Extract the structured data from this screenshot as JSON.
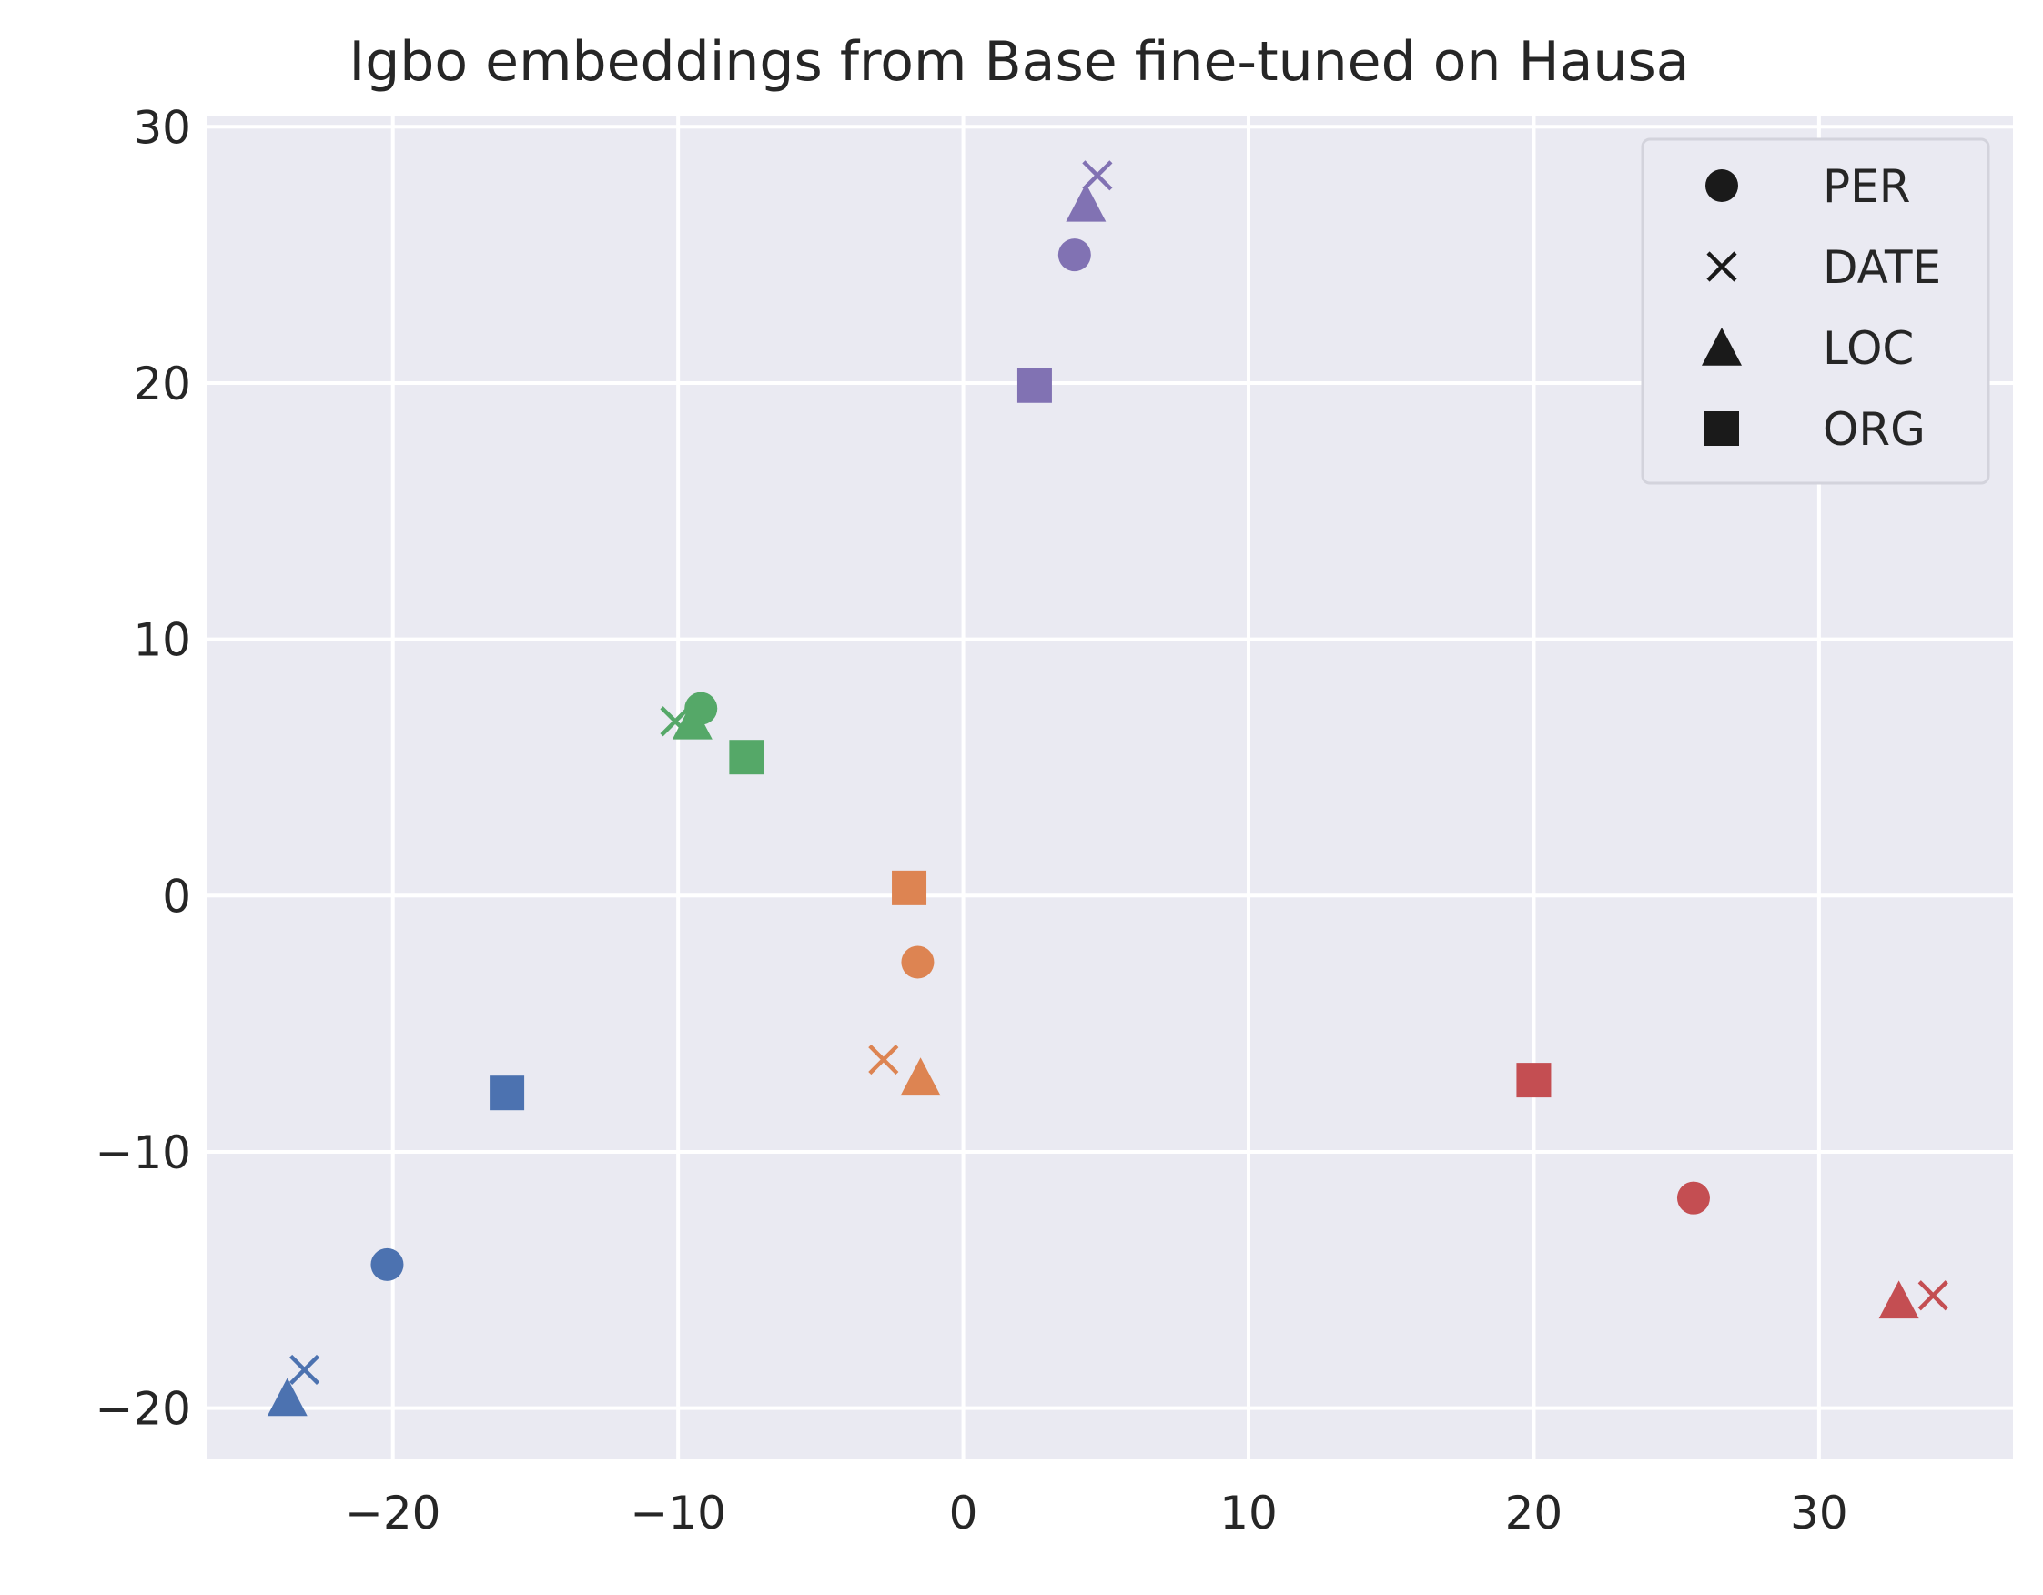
{
  "chart_data": {
    "type": "scatter",
    "title": "Igbo embeddings from Base fine-tuned on Hausa",
    "xlabel": "",
    "ylabel": "",
    "xlim": [
      -26.5,
      36.8
    ],
    "ylim": [
      -22,
      30.4
    ],
    "x_ticks": [
      -20,
      -10,
      0,
      10,
      20,
      30
    ],
    "y_ticks": [
      -20,
      -10,
      0,
      10,
      20,
      30
    ],
    "x_tick_labels": [
      "−20",
      "−10",
      "0",
      "10",
      "20",
      "30"
    ],
    "y_tick_labels": [
      "−20",
      "−10",
      "0",
      "10",
      "20",
      "30"
    ],
    "grid": true,
    "legend_position": "top-right",
    "legend": [
      {
        "label": "PER",
        "marker": "circle"
      },
      {
        "label": "DATE",
        "marker": "x"
      },
      {
        "label": "LOC",
        "marker": "triangle"
      },
      {
        "label": "ORG",
        "marker": "square"
      }
    ],
    "colors": {
      "blue": "#4c72b0",
      "orange": "#dd8452",
      "green": "#55a868",
      "red": "#c44e52",
      "purple": "#8172b3",
      "background": "#eaeaf2",
      "grid": "#ffffff",
      "legend_marker": "#1a1a1a"
    },
    "points": [
      {
        "x": -20.2,
        "y": -14.4,
        "marker": "circle",
        "color": "blue"
      },
      {
        "x": -23.1,
        "y": -18.5,
        "marker": "x",
        "color": "blue"
      },
      {
        "x": -23.7,
        "y": -19.6,
        "marker": "triangle",
        "color": "blue"
      },
      {
        "x": -16.0,
        "y": -7.7,
        "marker": "square",
        "color": "blue"
      },
      {
        "x": -1.6,
        "y": -2.6,
        "marker": "circle",
        "color": "orange"
      },
      {
        "x": -2.8,
        "y": -6.4,
        "marker": "x",
        "color": "orange"
      },
      {
        "x": -1.5,
        "y": -7.1,
        "marker": "triangle",
        "color": "orange"
      },
      {
        "x": -1.9,
        "y": 0.3,
        "marker": "square",
        "color": "orange"
      },
      {
        "x": -9.2,
        "y": 7.3,
        "marker": "circle",
        "color": "green"
      },
      {
        "x": -10.1,
        "y": 6.8,
        "marker": "x",
        "color": "green"
      },
      {
        "x": -9.5,
        "y": 6.8,
        "marker": "triangle",
        "color": "green"
      },
      {
        "x": -7.6,
        "y": 5.4,
        "marker": "square",
        "color": "green"
      },
      {
        "x": 25.6,
        "y": -11.8,
        "marker": "circle",
        "color": "red"
      },
      {
        "x": 34.0,
        "y": -15.6,
        "marker": "x",
        "color": "red"
      },
      {
        "x": 32.8,
        "y": -15.8,
        "marker": "triangle",
        "color": "red"
      },
      {
        "x": 20.0,
        "y": -7.2,
        "marker": "square",
        "color": "red"
      },
      {
        "x": 3.9,
        "y": 25.0,
        "marker": "circle",
        "color": "purple"
      },
      {
        "x": 4.7,
        "y": 28.1,
        "marker": "x",
        "color": "purple"
      },
      {
        "x": 4.3,
        "y": 27.0,
        "marker": "triangle",
        "color": "purple"
      },
      {
        "x": 2.5,
        "y": 19.9,
        "marker": "square",
        "color": "purple"
      }
    ]
  }
}
